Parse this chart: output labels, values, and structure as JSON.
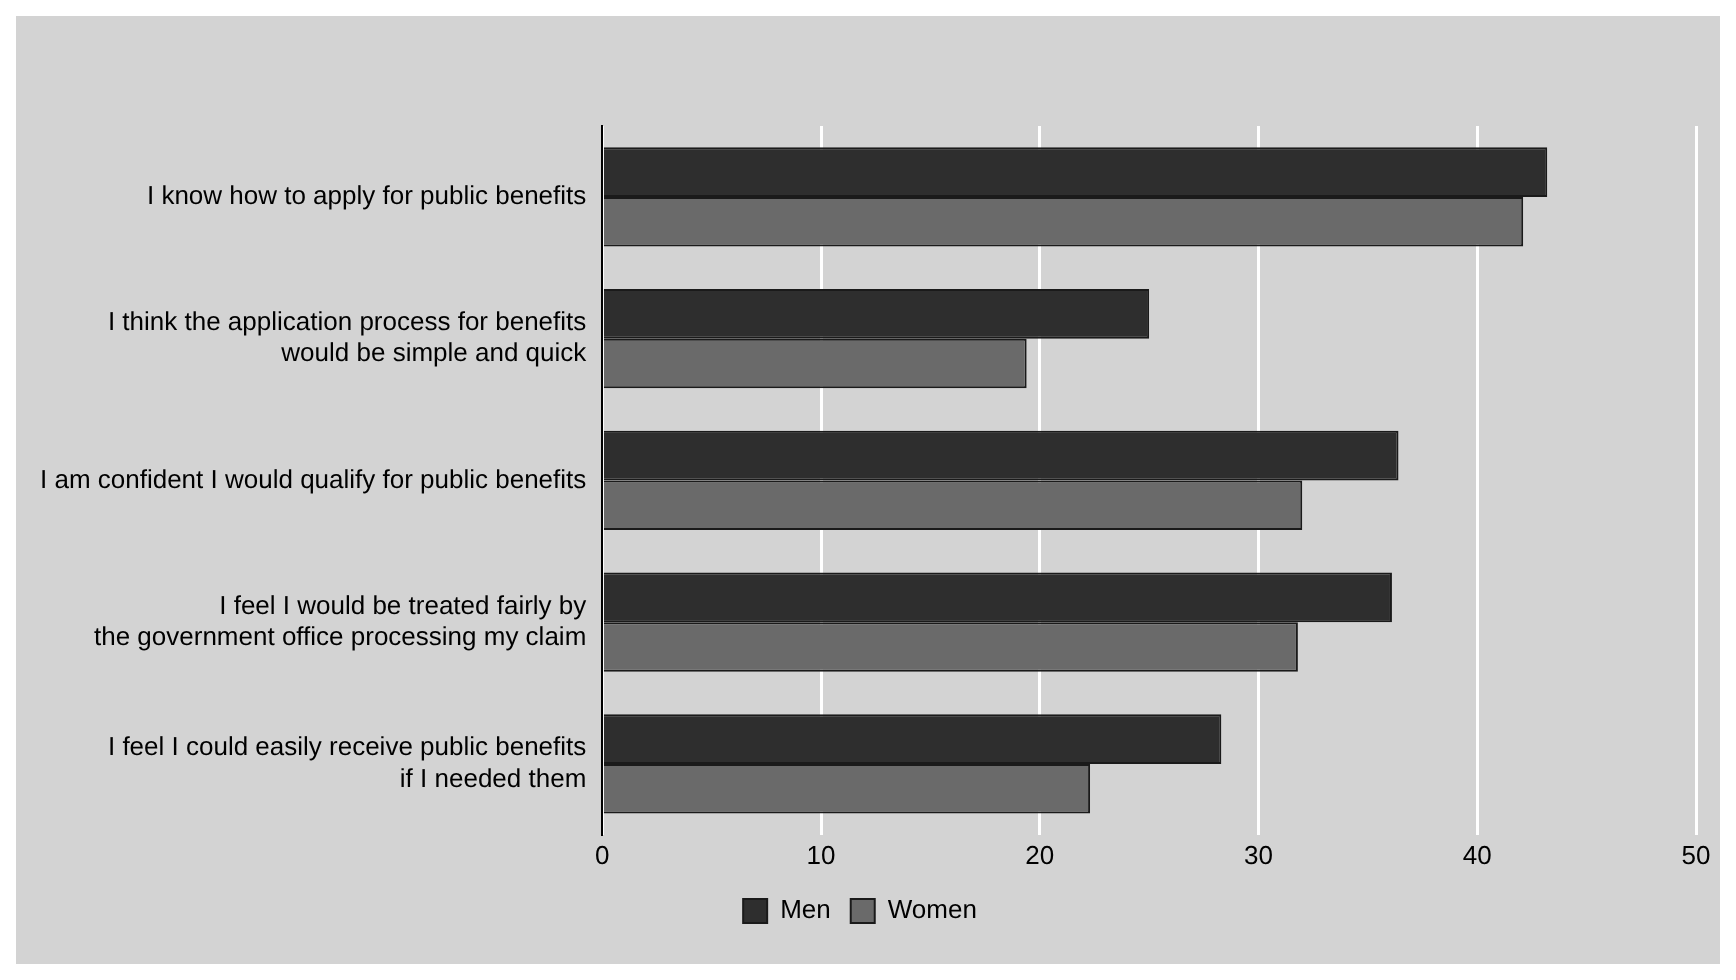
{
  "chart_data": {
    "type": "bar",
    "orientation": "horizontal",
    "categories": [
      "I know how to apply for public benefits",
      "I think the application process for benefits\nwould be simple and quick",
      "I am confident I would qualify for public benefits",
      "I feel I would be treated fairly by\nthe government office processing my claim",
      "I feel I could easily receive public benefits\nif I needed them"
    ],
    "series": [
      {
        "name": "Men",
        "color": "#2e2e2e",
        "values": [
          43.2,
          25.0,
          36.4,
          36.1,
          28.3
        ]
      },
      {
        "name": "Women",
        "color": "#6a6a6a",
        "values": [
          42.1,
          19.4,
          32.0,
          31.8,
          22.3
        ]
      }
    ],
    "xlim": [
      0,
      50
    ],
    "xticks": [
      0,
      10,
      20,
      30,
      40,
      50
    ],
    "grid": "x",
    "legend": "bottom"
  }
}
